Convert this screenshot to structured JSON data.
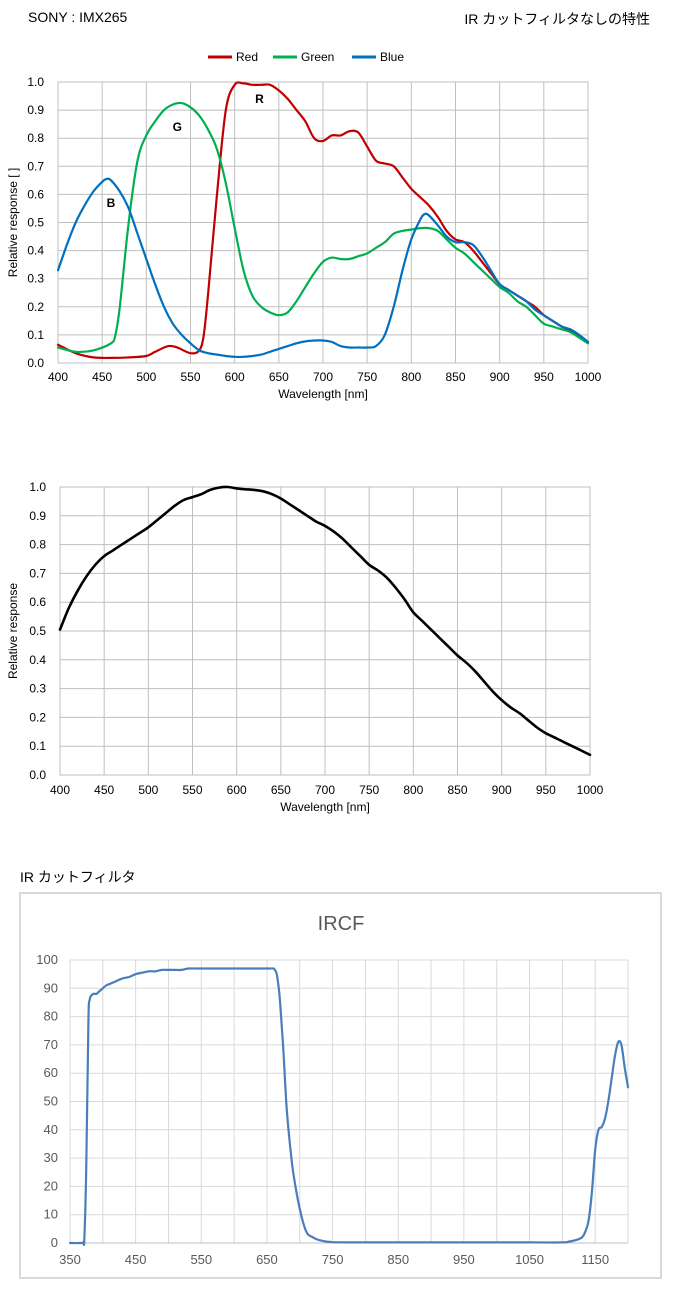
{
  "header": {
    "sensor": "SONY : IMX265",
    "filter_note": "IR カットフィルタなしの特性",
    "ircf_section": "IR カットフィルタ"
  },
  "chart_data": [
    {
      "type": "line",
      "title": "",
      "xlabel": "Wavelength [nm]",
      "ylabel": "Relative response [ ]",
      "xlim": [
        400,
        1000
      ],
      "ylim": [
        0,
        1.0
      ],
      "xticks": [
        "400",
        "450",
        "500",
        "550",
        "600",
        "650",
        "700",
        "750",
        "800",
        "850",
        "900",
        "950",
        "1000"
      ],
      "yticks": [
        "0.0",
        "0.1",
        "0.2",
        "0.3",
        "0.4",
        "0.5",
        "0.6",
        "0.7",
        "0.8",
        "0.9",
        "1.0"
      ],
      "grid": true,
      "legend_position": "top",
      "annotations": [
        {
          "text": "R",
          "x": 628,
          "y": 0.94
        },
        {
          "text": "G",
          "x": 535,
          "y": 0.84
        },
        {
          "text": "B",
          "x": 460,
          "y": 0.57
        }
      ],
      "series": [
        {
          "name": "Red",
          "color": "#c00000",
          "x": [
            400,
            420,
            440,
            460,
            480,
            500,
            510,
            525,
            535,
            550,
            560,
            565,
            570,
            580,
            590,
            600,
            610,
            620,
            630,
            640,
            650,
            660,
            670,
            680,
            690,
            700,
            710,
            720,
            730,
            740,
            750,
            760,
            770,
            780,
            790,
            800,
            810,
            820,
            830,
            840,
            850,
            860,
            870,
            880,
            890,
            900,
            910,
            920,
            930,
            940,
            950,
            960,
            970,
            980,
            990,
            1000
          ],
          "y": [
            0.065,
            0.035,
            0.02,
            0.018,
            0.02,
            0.025,
            0.04,
            0.06,
            0.055,
            0.035,
            0.045,
            0.1,
            0.25,
            0.6,
            0.9,
            0.99,
            0.995,
            0.99,
            0.99,
            0.99,
            0.97,
            0.94,
            0.9,
            0.86,
            0.8,
            0.79,
            0.81,
            0.81,
            0.825,
            0.82,
            0.77,
            0.72,
            0.71,
            0.7,
            0.66,
            0.62,
            0.59,
            0.56,
            0.52,
            0.47,
            0.44,
            0.43,
            0.4,
            0.36,
            0.32,
            0.28,
            0.26,
            0.24,
            0.22,
            0.2,
            0.17,
            0.15,
            0.13,
            0.115,
            0.095,
            0.075
          ]
        },
        {
          "name": "Green",
          "color": "#00b050",
          "x": [
            400,
            420,
            440,
            460,
            465,
            470,
            480,
            490,
            500,
            510,
            520,
            530,
            540,
            550,
            560,
            570,
            580,
            590,
            600,
            610,
            620,
            630,
            640,
            650,
            660,
            670,
            680,
            690,
            700,
            710,
            720,
            730,
            740,
            750,
            760,
            770,
            780,
            790,
            800,
            810,
            820,
            830,
            840,
            850,
            860,
            870,
            880,
            890,
            900,
            910,
            920,
            930,
            940,
            950,
            960,
            970,
            980,
            990,
            1000
          ],
          "y": [
            0.055,
            0.04,
            0.045,
            0.07,
            0.1,
            0.2,
            0.5,
            0.72,
            0.81,
            0.86,
            0.9,
            0.92,
            0.925,
            0.91,
            0.88,
            0.83,
            0.76,
            0.64,
            0.48,
            0.33,
            0.24,
            0.2,
            0.18,
            0.17,
            0.18,
            0.22,
            0.27,
            0.32,
            0.36,
            0.375,
            0.37,
            0.37,
            0.38,
            0.39,
            0.41,
            0.43,
            0.46,
            0.47,
            0.475,
            0.48,
            0.48,
            0.47,
            0.44,
            0.41,
            0.39,
            0.36,
            0.33,
            0.3,
            0.27,
            0.25,
            0.22,
            0.2,
            0.17,
            0.14,
            0.13,
            0.12,
            0.11,
            0.09,
            0.07
          ]
        },
        {
          "name": "Blue",
          "color": "#0070c0",
          "x": [
            400,
            410,
            420,
            430,
            440,
            450,
            455,
            460,
            470,
            480,
            490,
            500,
            510,
            520,
            530,
            540,
            550,
            560,
            570,
            580,
            590,
            600,
            610,
            620,
            630,
            640,
            650,
            660,
            670,
            680,
            690,
            700,
            710,
            720,
            730,
            740,
            750,
            760,
            770,
            780,
            790,
            800,
            810,
            815,
            820,
            830,
            840,
            850,
            860,
            870,
            880,
            890,
            900,
            910,
            920,
            930,
            940,
            950,
            960,
            970,
            980,
            990,
            1000
          ],
          "y": [
            0.33,
            0.42,
            0.5,
            0.56,
            0.61,
            0.645,
            0.655,
            0.65,
            0.61,
            0.55,
            0.46,
            0.37,
            0.28,
            0.2,
            0.14,
            0.1,
            0.07,
            0.045,
            0.035,
            0.03,
            0.025,
            0.022,
            0.022,
            0.025,
            0.03,
            0.04,
            0.05,
            0.06,
            0.07,
            0.077,
            0.08,
            0.08,
            0.075,
            0.06,
            0.055,
            0.055,
            0.055,
            0.06,
            0.1,
            0.2,
            0.33,
            0.44,
            0.51,
            0.53,
            0.525,
            0.49,
            0.45,
            0.43,
            0.43,
            0.42,
            0.38,
            0.33,
            0.28,
            0.26,
            0.24,
            0.22,
            0.19,
            0.17,
            0.15,
            0.13,
            0.12,
            0.1,
            0.075
          ]
        }
      ]
    },
    {
      "type": "line",
      "title": "",
      "xlabel": "Wavelength [nm]",
      "ylabel": "Relative response",
      "xlim": [
        400,
        1000
      ],
      "ylim": [
        0,
        1.0
      ],
      "xticks": [
        "400",
        "450",
        "500",
        "550",
        "600",
        "650",
        "700",
        "750",
        "800",
        "850",
        "900",
        "950",
        "1000"
      ],
      "yticks": [
        "0.0",
        "0.1",
        "0.2",
        "0.3",
        "0.4",
        "0.5",
        "0.6",
        "0.7",
        "0.8",
        "0.9",
        "1.0"
      ],
      "grid": true,
      "series": [
        {
          "color": "#000000",
          "x": [
            400,
            410,
            420,
            430,
            440,
            450,
            460,
            470,
            480,
            490,
            500,
            510,
            520,
            530,
            540,
            550,
            560,
            570,
            580,
            590,
            600,
            610,
            620,
            630,
            640,
            650,
            660,
            670,
            680,
            690,
            700,
            710,
            720,
            730,
            740,
            750,
            760,
            770,
            780,
            790,
            800,
            810,
            820,
            830,
            840,
            850,
            860,
            870,
            880,
            890,
            900,
            910,
            920,
            930,
            940,
            950,
            960,
            970,
            980,
            990,
            1000
          ],
          "y": [
            0.505,
            0.58,
            0.64,
            0.69,
            0.73,
            0.76,
            0.78,
            0.8,
            0.82,
            0.84,
            0.86,
            0.885,
            0.91,
            0.935,
            0.955,
            0.965,
            0.975,
            0.99,
            0.998,
            1.0,
            0.995,
            0.992,
            0.99,
            0.985,
            0.975,
            0.96,
            0.94,
            0.92,
            0.9,
            0.88,
            0.865,
            0.845,
            0.82,
            0.79,
            0.76,
            0.73,
            0.71,
            0.685,
            0.65,
            0.61,
            0.565,
            0.535,
            0.505,
            0.475,
            0.445,
            0.415,
            0.39,
            0.36,
            0.325,
            0.29,
            0.26,
            0.235,
            0.215,
            0.19,
            0.165,
            0.145,
            0.13,
            0.115,
            0.1,
            0.085,
            0.07
          ]
        }
      ]
    },
    {
      "type": "line",
      "title": "IRCF",
      "xlabel": "",
      "ylabel": "",
      "xlim": [
        350,
        1200
      ],
      "ylim": [
        0,
        100
      ],
      "xticks": [
        "350",
        "450",
        "550",
        "650",
        "750",
        "850",
        "950",
        "1050",
        "1150"
      ],
      "yticks": [
        "0",
        "10",
        "20",
        "30",
        "40",
        "50",
        "60",
        "70",
        "80",
        "90",
        "100"
      ],
      "grid": true,
      "series": [
        {
          "color": "#4a7ebb",
          "x": [
            350,
            365,
            370,
            372,
            375,
            378,
            380,
            385,
            390,
            395,
            400,
            405,
            410,
            415,
            420,
            425,
            430,
            440,
            450,
            460,
            470,
            480,
            490,
            500,
            510,
            520,
            530,
            540,
            550,
            560,
            570,
            580,
            590,
            600,
            610,
            620,
            630,
            640,
            650,
            655,
            660,
            662,
            665,
            668,
            670,
            675,
            680,
            685,
            690,
            700,
            710,
            720,
            730,
            750,
            800,
            850,
            900,
            950,
            1000,
            1050,
            1100,
            1110,
            1120,
            1130,
            1135,
            1140,
            1145,
            1150,
            1155,
            1160,
            1165,
            1170,
            1175,
            1180,
            1185,
            1190,
            1195,
            1200
          ],
          "y": [
            0,
            0,
            0.2,
            2,
            30,
            78,
            86,
            88,
            88,
            89,
            90,
            91,
            91.5,
            92,
            92.5,
            93,
            93.5,
            94,
            95,
            95.5,
            96,
            96,
            96.5,
            96.5,
            96.5,
            96.5,
            97,
            97,
            97,
            97,
            97,
            97,
            97,
            97,
            97,
            97,
            97,
            97,
            97,
            97,
            97,
            96.5,
            95,
            90,
            85,
            68,
            48,
            35,
            25,
            12,
            4,
            2,
            1,
            0.3,
            0.2,
            0.2,
            0.2,
            0.2,
            0.2,
            0.2,
            0.2,
            0.5,
            1,
            2,
            4,
            8,
            18,
            33,
            40,
            41,
            44,
            50,
            58,
            66,
            71,
            70,
            62,
            55
          ]
        }
      ]
    }
  ]
}
